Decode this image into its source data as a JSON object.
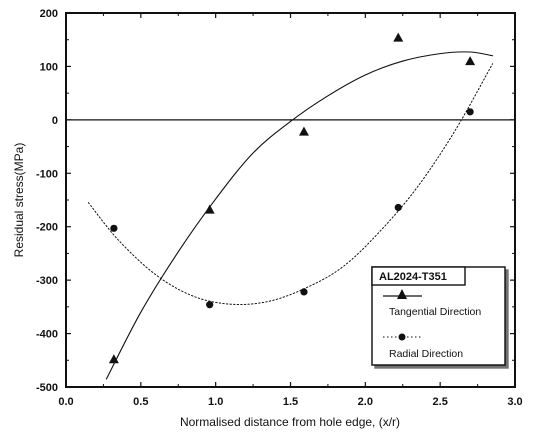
{
  "chart_data": {
    "type": "scatter",
    "xlabel": "Normalised distance from hole edge, (x/r)",
    "ylabel": "Residual stress(MPa)",
    "xlim": [
      0.0,
      3.0
    ],
    "ylim": [
      -500,
      200
    ],
    "xticks": [
      "0.0",
      "0.5",
      "1.0",
      "1.5",
      "2.0",
      "2.5",
      "3.0"
    ],
    "yticks": [
      "200",
      "100",
      "0",
      "-100",
      "-200",
      "-300",
      "-400",
      "-500"
    ],
    "reference_line_y": 0,
    "legend": {
      "title": "AL2024-T351",
      "placement": "bottom-right"
    },
    "series": [
      {
        "name": "Tangential Direction",
        "marker": "triangle",
        "line": "solid",
        "color": "#111111",
        "points": [
          {
            "x": 0.32,
            "y": -448
          },
          {
            "x": 0.96,
            "y": -168
          },
          {
            "x": 1.59,
            "y": -22
          },
          {
            "x": 2.22,
            "y": 154
          },
          {
            "x": 2.7,
            "y": 110
          }
        ],
        "fit_curve": [
          {
            "x": 0.27,
            "y": -485
          },
          {
            "x": 0.5,
            "y": -360
          },
          {
            "x": 0.75,
            "y": -247
          },
          {
            "x": 1.0,
            "y": -148
          },
          {
            "x": 1.25,
            "y": -62
          },
          {
            "x": 1.5,
            "y": -3
          },
          {
            "x": 1.75,
            "y": 45
          },
          {
            "x": 2.0,
            "y": 84
          },
          {
            "x": 2.25,
            "y": 110
          },
          {
            "x": 2.5,
            "y": 124
          },
          {
            "x": 2.7,
            "y": 127
          },
          {
            "x": 2.85,
            "y": 120
          }
        ]
      },
      {
        "name": "Radial Direction",
        "marker": "circle",
        "line": "dotted",
        "color": "#111111",
        "points": [
          {
            "x": 0.32,
            "y": -203
          },
          {
            "x": 0.96,
            "y": -346
          },
          {
            "x": 1.59,
            "y": -322
          },
          {
            "x": 2.22,
            "y": -164
          },
          {
            "x": 2.7,
            "y": 15
          }
        ],
        "fit_curve": [
          {
            "x": 0.15,
            "y": -155
          },
          {
            "x": 0.35,
            "y": -225
          },
          {
            "x": 0.6,
            "y": -290
          },
          {
            "x": 0.85,
            "y": -330
          },
          {
            "x": 1.1,
            "y": -345
          },
          {
            "x": 1.35,
            "y": -340
          },
          {
            "x": 1.6,
            "y": -315
          },
          {
            "x": 1.85,
            "y": -275
          },
          {
            "x": 2.1,
            "y": -208
          },
          {
            "x": 2.35,
            "y": -125
          },
          {
            "x": 2.6,
            "y": -20
          },
          {
            "x": 2.85,
            "y": 105
          }
        ]
      }
    ]
  }
}
